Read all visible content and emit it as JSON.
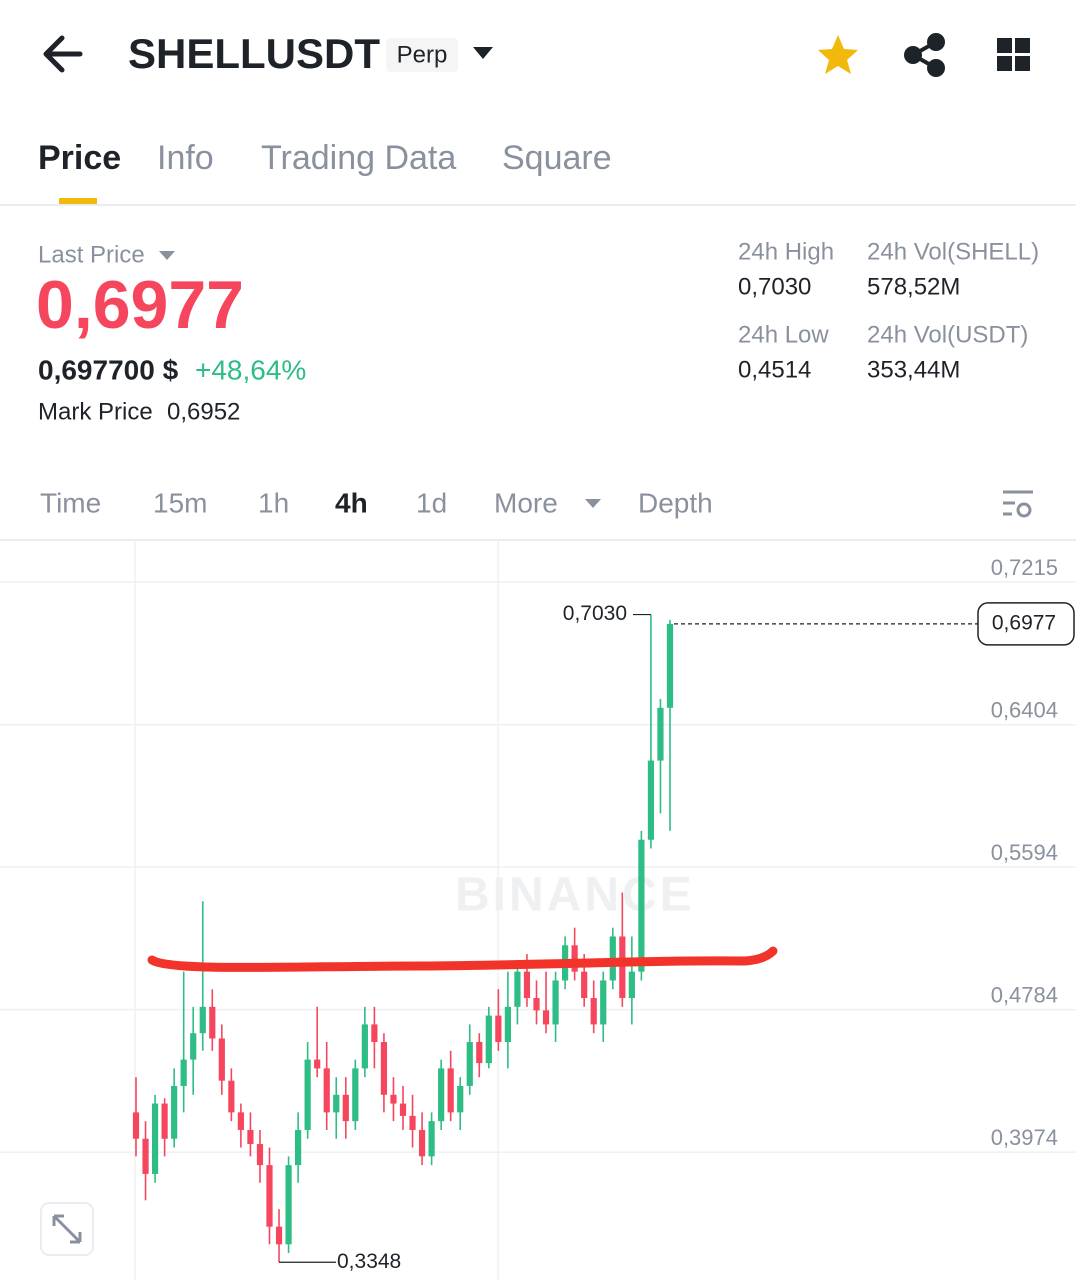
{
  "header": {
    "title": "SHELLUSDT",
    "badge": "Perp"
  },
  "tabs": [
    "Price",
    "Info",
    "Trading Data",
    "Square"
  ],
  "ticker": {
    "last_price_label": "Last Price",
    "last_price": "0,6977",
    "usd_price": "0,697700 $",
    "change": "+48,64%",
    "mark_price_label": "Mark Price",
    "mark_price": "0,6952",
    "stats": [
      {
        "label": "24h High",
        "value": "0,7030"
      },
      {
        "label": "24h Vol(SHELL)",
        "value": "578,52M"
      },
      {
        "label": "24h Low",
        "value": "0,4514"
      },
      {
        "label": "24h Vol(USDT)",
        "value": "353,44M"
      }
    ]
  },
  "intervals": [
    "Time",
    "15m",
    "1h",
    "4h",
    "1d",
    "More",
    "Depth"
  ],
  "chart_data": {
    "type": "candlestick",
    "watermark": "BINANCE",
    "up_color": "#2ebd85",
    "down_color": "#f6465d",
    "open": [
      0.42,
      0.405,
      0.385,
      0.425,
      0.405,
      0.435,
      0.45,
      0.465,
      0.48,
      0.462,
      0.438,
      0.42,
      0.41,
      0.402,
      0.39,
      0.355,
      0.345,
      0.39,
      0.41,
      0.45,
      0.445,
      0.42,
      0.43,
      0.415,
      0.445,
      0.47,
      0.46,
      0.43,
      0.425,
      0.418,
      0.41,
      0.395,
      0.415,
      0.445,
      0.42,
      0.435,
      0.46,
      0.448,
      0.475,
      0.46,
      0.48,
      0.5,
      0.485,
      0.478,
      0.47,
      0.495,
      0.515,
      0.5,
      0.485,
      0.47,
      0.495,
      0.52,
      0.485,
      0.5,
      0.575,
      0.62,
      0.65
    ],
    "high": [
      0.44,
      0.415,
      0.43,
      0.428,
      0.445,
      0.5,
      0.48,
      0.54,
      0.49,
      0.47,
      0.445,
      0.425,
      0.42,
      0.41,
      0.4,
      0.365,
      0.395,
      0.42,
      0.46,
      0.48,
      0.46,
      0.44,
      0.44,
      0.45,
      0.48,
      0.48,
      0.465,
      0.44,
      0.435,
      0.43,
      0.42,
      0.42,
      0.45,
      0.455,
      0.44,
      0.47,
      0.465,
      0.48,
      0.49,
      0.5,
      0.505,
      0.51,
      0.495,
      0.5,
      0.5,
      0.52,
      0.525,
      0.51,
      0.495,
      0.5,
      0.525,
      0.545,
      0.52,
      0.58,
      0.703,
      0.655,
      0.7
    ],
    "low": [
      0.395,
      0.37,
      0.38,
      0.395,
      0.4,
      0.42,
      0.43,
      0.455,
      0.455,
      0.43,
      0.415,
      0.4,
      0.395,
      0.38,
      0.345,
      0.3348,
      0.34,
      0.38,
      0.405,
      0.44,
      0.41,
      0.405,
      0.405,
      0.41,
      0.44,
      0.445,
      0.42,
      0.415,
      0.41,
      0.4,
      0.39,
      0.39,
      0.41,
      0.415,
      0.41,
      0.43,
      0.44,
      0.445,
      0.455,
      0.445,
      0.47,
      0.48,
      0.47,
      0.465,
      0.46,
      0.49,
      0.495,
      0.48,
      0.465,
      0.46,
      0.49,
      0.48,
      0.47,
      0.495,
      0.57,
      0.59,
      0.58
    ],
    "close": [
      0.405,
      0.385,
      0.425,
      0.405,
      0.435,
      0.45,
      0.465,
      0.48,
      0.462,
      0.438,
      0.42,
      0.41,
      0.402,
      0.39,
      0.355,
      0.345,
      0.39,
      0.41,
      0.45,
      0.445,
      0.42,
      0.43,
      0.415,
      0.445,
      0.47,
      0.46,
      0.43,
      0.425,
      0.418,
      0.41,
      0.395,
      0.415,
      0.445,
      0.42,
      0.435,
      0.46,
      0.448,
      0.475,
      0.46,
      0.48,
      0.5,
      0.485,
      0.478,
      0.47,
      0.495,
      0.515,
      0.5,
      0.485,
      0.47,
      0.495,
      0.52,
      0.485,
      0.5,
      0.575,
      0.62,
      0.65,
      0.6977
    ],
    "ylim": [
      0.3247,
      0.7454
    ],
    "yticks": [
      {
        "value": 0.7215,
        "label": "0,7215"
      },
      {
        "value": 0.6404,
        "label": "0,6404"
      },
      {
        "value": 0.5594,
        "label": "0,5594"
      },
      {
        "value": 0.4784,
        "label": "0,4784"
      },
      {
        "value": 0.3974,
        "label": "0,3974"
      }
    ],
    "high_marker": {
      "value": 0.703,
      "label": "0,7030"
    },
    "low_marker": {
      "value": 0.3348,
      "label": "0,3348"
    },
    "last_marker": {
      "value": 0.6977,
      "label": "0,6977"
    },
    "grid": true
  }
}
